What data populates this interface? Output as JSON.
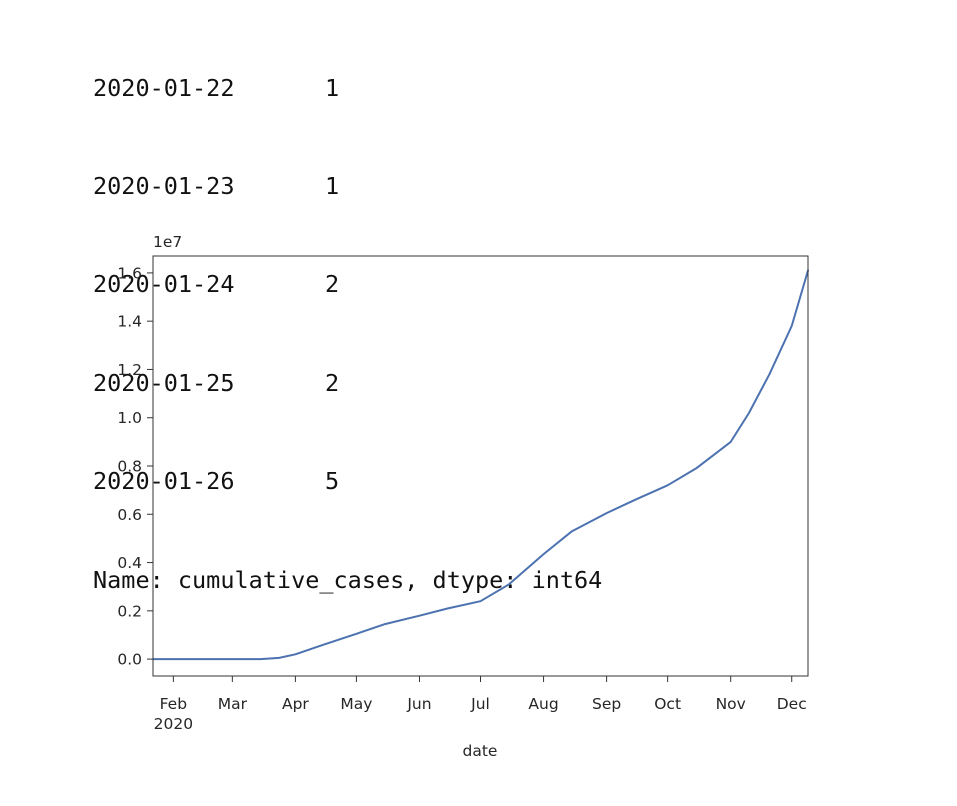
{
  "console_output": {
    "rows": [
      {
        "date": "2020-01-22",
        "value": "1"
      },
      {
        "date": "2020-01-23",
        "value": "1"
      },
      {
        "date": "2020-01-24",
        "value": "2"
      },
      {
        "date": "2020-01-25",
        "value": "2"
      },
      {
        "date": "2020-01-26",
        "value": "5"
      }
    ],
    "footer": "Name: cumulative_cases, dtype: int64"
  },
  "chart_data": {
    "type": "line",
    "xlabel": "date",
    "ylabel": "",
    "y_offset_label": "1e7",
    "ylim": [
      -0.07,
      1.67
    ],
    "xlim": [
      "2020-01-22",
      "2020-12-09"
    ],
    "y_ticks": [
      "0.0",
      "0.2",
      "0.4",
      "0.6",
      "0.8",
      "1.0",
      "1.2",
      "1.4",
      "1.6"
    ],
    "x_ticks": [
      {
        "date": "2020-02-01",
        "label": "Feb",
        "sublabel": "2020"
      },
      {
        "date": "2020-03-01",
        "label": "Mar"
      },
      {
        "date": "2020-04-01",
        "label": "Apr"
      },
      {
        "date": "2020-05-01",
        "label": "May"
      },
      {
        "date": "2020-06-01",
        "label": "Jun"
      },
      {
        "date": "2020-07-01",
        "label": "Jul"
      },
      {
        "date": "2020-08-01",
        "label": "Aug"
      },
      {
        "date": "2020-09-01",
        "label": "Sep"
      },
      {
        "date": "2020-10-01",
        "label": "Oct"
      },
      {
        "date": "2020-11-01",
        "label": "Nov"
      },
      {
        "date": "2020-12-01",
        "label": "Dec"
      }
    ],
    "line_color": "#4c72b0",
    "grid": false,
    "series": [
      {
        "x": [
          "2020-01-22",
          "2020-02-15",
          "2020-03-01",
          "2020-03-15",
          "2020-03-24",
          "2020-04-01",
          "2020-04-15",
          "2020-05-01",
          "2020-05-15",
          "2020-06-01",
          "2020-06-15",
          "2020-07-01",
          "2020-07-15",
          "2020-08-01",
          "2020-08-15",
          "2020-09-01",
          "2020-09-15",
          "2020-10-01",
          "2020-10-15",
          "2020-11-01",
          "2020-11-10",
          "2020-11-20",
          "2020-12-01",
          "2020-12-09"
        ],
        "y": [
          0.0,
          0.0,
          0.0,
          0.0,
          0.005,
          0.02,
          0.06,
          0.105,
          0.145,
          0.18,
          0.21,
          0.24,
          0.31,
          0.435,
          0.53,
          0.605,
          0.66,
          0.72,
          0.79,
          0.9,
          1.02,
          1.18,
          1.38,
          1.61
        ]
      }
    ]
  }
}
